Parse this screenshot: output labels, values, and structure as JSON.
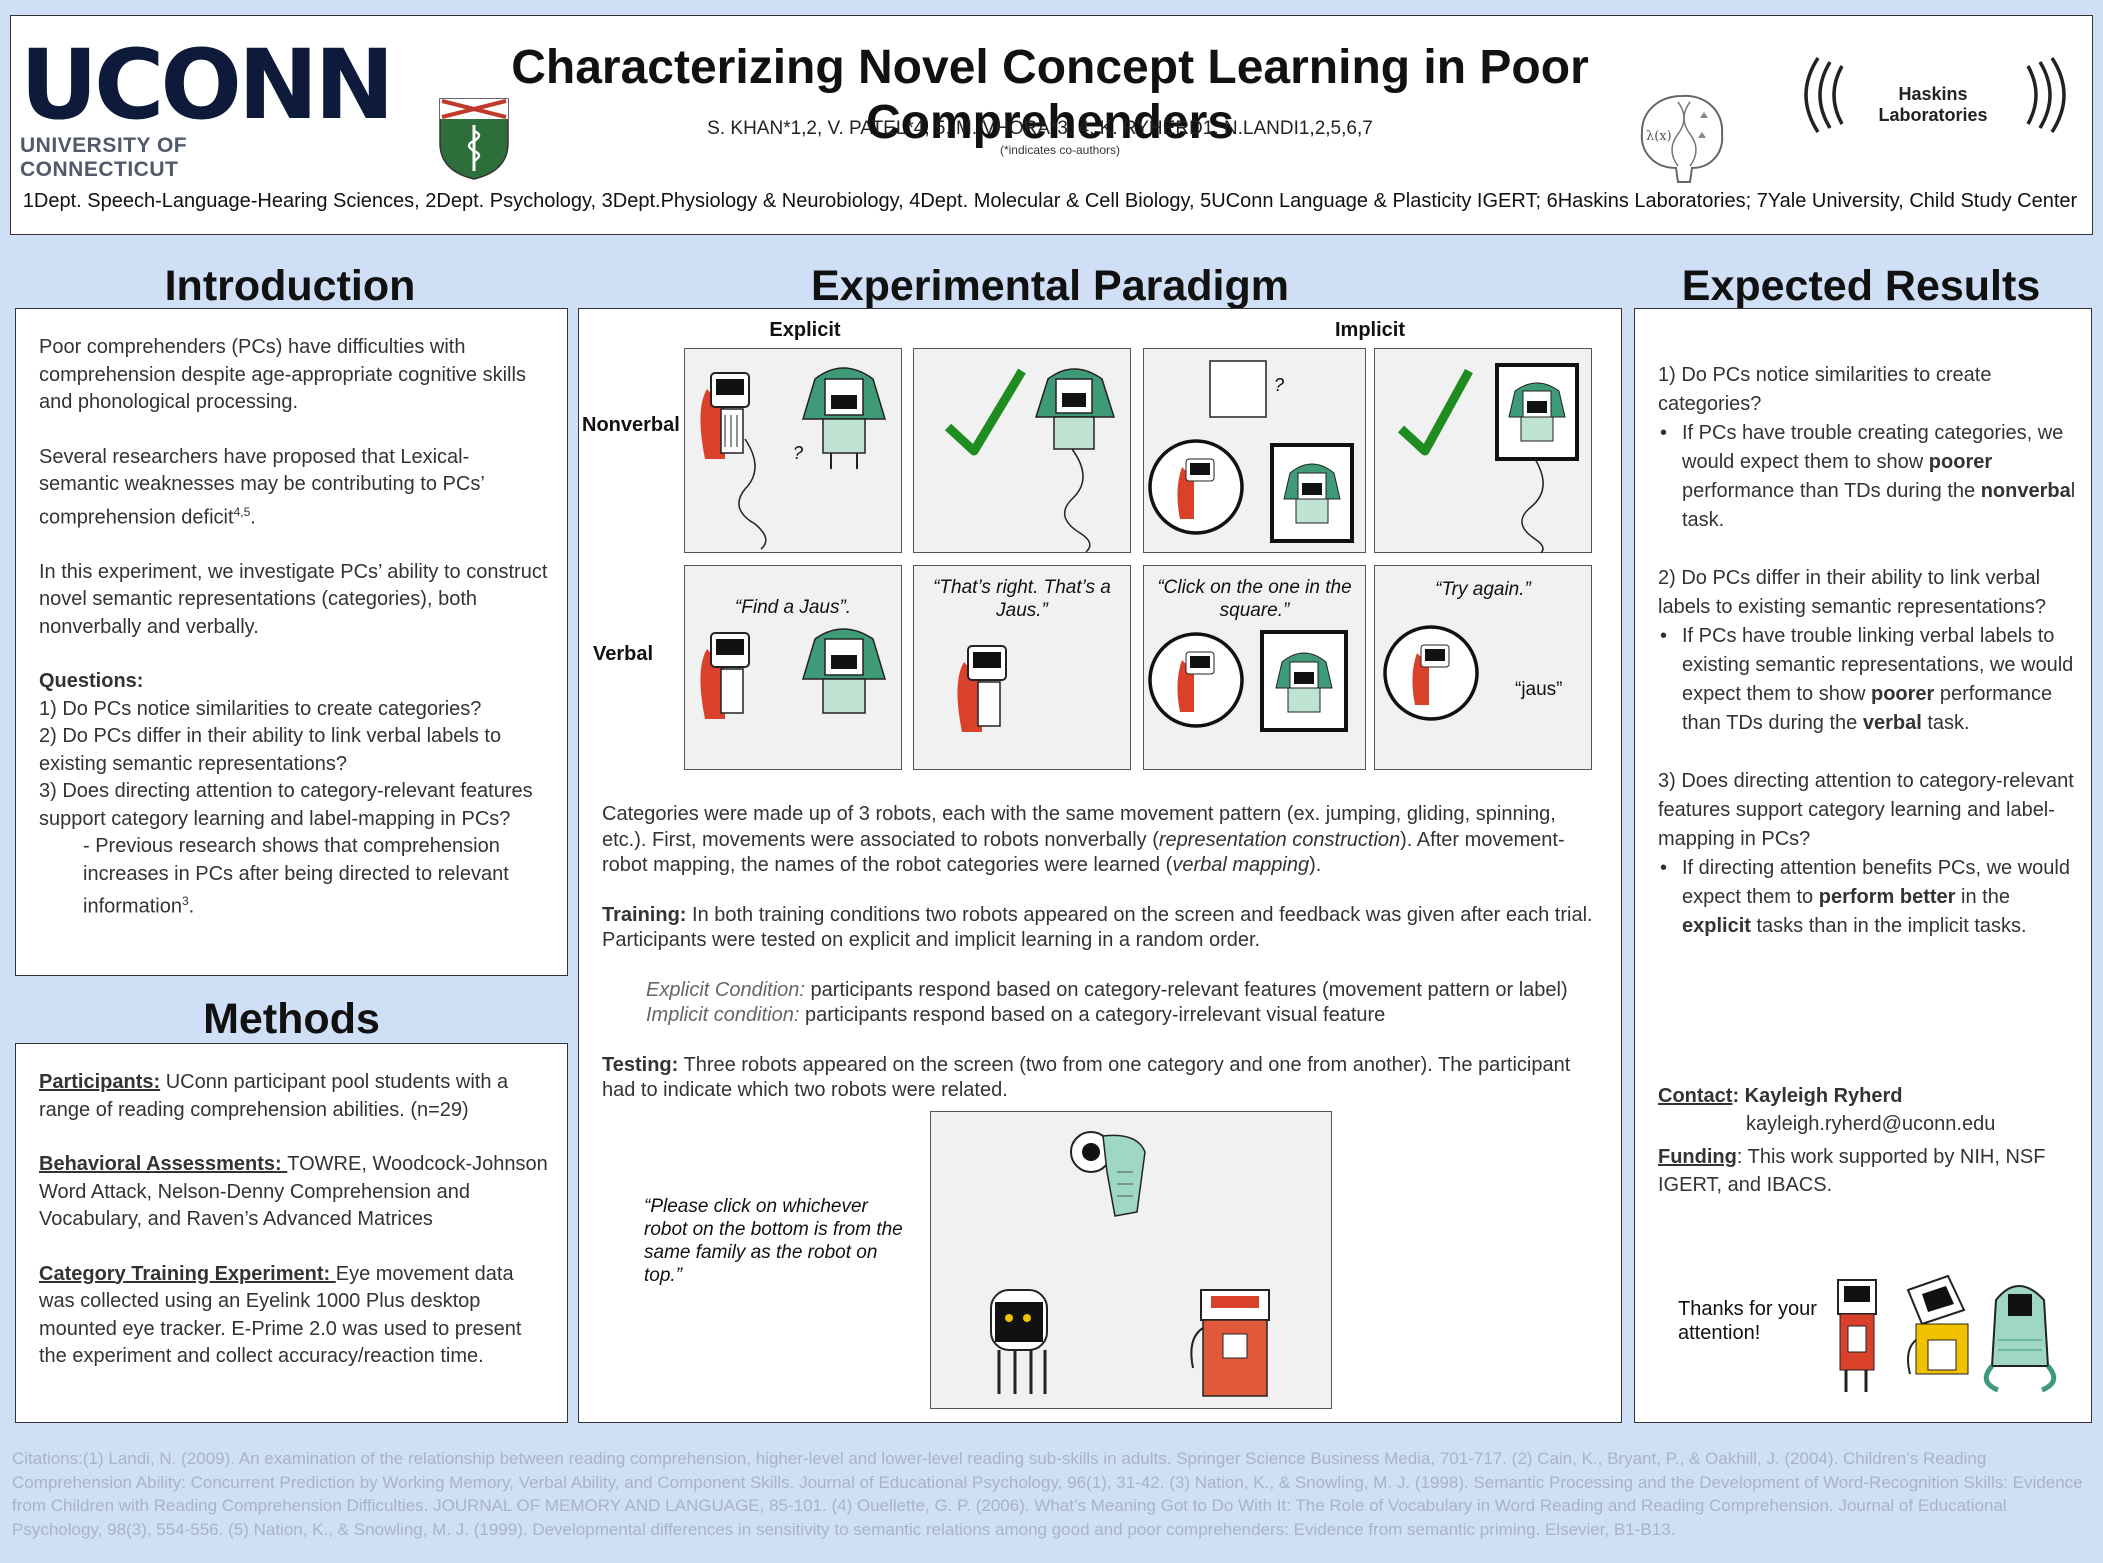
{
  "header": {
    "logo_word": "UCONN",
    "logo_sub": "UNIVERSITY OF CONNECTICUT",
    "title": "Characterizing Novel Concept Learning in Poor Comprehenders",
    "authors": "S. KHAN*1,2, V. PATEL*4, 5, M. VHORA*3, 4,  K. RYHERD1, N.LANDI1,2,5,6,7",
    "coauthor_note": "(*indicates co-authors)",
    "affiliations": "1Dept. Speech-Language-Hearing Sciences, 2Dept. Psychology, 3Dept.Physiology & Neurobiology, 4Dept. Molecular & Cell Biology, 5UConn Language & Plasticity IGERT;  6Haskins Laboratories; 7Yale University, Child Study Center",
    "haskins": "Haskins Laboratories",
    "brain_label": "λ(x)"
  },
  "intro": {
    "heading": "Introduction",
    "p1": "Poor comprehenders (PCs) have difficulties with comprehension despite age-appropriate cognitive skills and phonological processing.",
    "p2": "Several researchers have proposed that Lexical-semantic weaknesses may be contributing to PCs’ comprehension deficit",
    "p2_sup": "4,5",
    "p2_end": ".",
    "p3": "In this experiment, we investigate PCs’ ability to construct novel semantic representations (categories), both nonverbally and verbally.",
    "questions_label": "Questions:",
    "q1": "1) Do PCs notice similarities to create categories?",
    "q2": "2) Do PCs differ in their ability to link verbal labels to existing semantic representations?",
    "q3": "3) Does directing attention to category-relevant features support category learning and label-mapping in PCs?",
    "q3_note": "- Previous research shows that comprehension increases  in PCs after being directed to relevant information",
    "q3_sup": "3",
    "q3_end": "."
  },
  "methods": {
    "heading": "Methods",
    "participants_label": "Participants:",
    "participants": " UConn participant pool students with a range of reading comprehension abilities. (n=29)",
    "behavioral_label": "Behavioral Assessments: ",
    "behavioral": "TOWRE, Woodcock-Johnson Word Attack, Nelson-Denny Comprehension and Vocabulary, and Raven’s Advanced Matrices",
    "category_label": "Category Training Experiment: ",
    "category": "Eye movement data was collected using an Eyelink 1000 Plus desktop mounted eye tracker. E-Prime 2.0 was used to present the experiment and collect accuracy/reaction time."
  },
  "paradigm": {
    "heading": "Experimental Paradigm",
    "col_explicit": "Explicit",
    "col_implicit": "Implicit",
    "row_nonverbal": "Nonverbal",
    "row_verbal": "Verbal",
    "qmark": "?",
    "v1": "“Find a Jaus”.",
    "v2": "“That’s right. That’s a Jaus.”",
    "v3": "“Click on the one in the square.”",
    "v4": "“Try again.”",
    "v4_label": "“jaus”",
    "desc_a": "Categories were made up of 3 robots, each with the same movement pattern (ex. jumping, gliding, spinning, etc.). First, movements were associated to robots nonverbally (",
    "desc_b": "representation construction",
    "desc_c": "). After movement-robot mapping, the names of the robot categories were learned (",
    "desc_d": "verbal mapping",
    "desc_e": ").",
    "training_label": "Training:",
    "training": " In both training conditions two robots appeared on the screen and feedback was given after each trial. Participants were tested on explicit and implicit learning in a random order.",
    "explicit_label": "Explicit Condition:",
    "explicit": " participants respond based on category-relevant features (movement pattern or label)",
    "implicit_label": "Implicit condition:",
    "implicit": " participants respond based on a category-irrelevant visual feature",
    "testing_label": "Testing:",
    "testing": " Three robots appeared on the screen (two from one category and one from another). The participant had to indicate which two robots were related.",
    "testing_quote": "“Please click on whichever robot on the bottom is from the same family as the robot on top.”"
  },
  "results": {
    "heading": "Expected Results",
    "r1": "1) Do PCs notice similarities to create categories?",
    "r1_a": "If PCs have trouble creating categories, we would expect them to show ",
    "r1_b": "poorer",
    "r1_c": " performance than TDs during the ",
    "r1_d": "nonverba",
    "r1_e": "l task.",
    "r2": "2) Do PCs differ in their ability to link verbal labels to existing semantic representations?",
    "r2_a": "If PCs have trouble linking verbal labels to existing semantic representations, we would expect them to show ",
    "r2_b": "poorer",
    "r2_c": " performance than TDs during the ",
    "r2_d": "verbal",
    "r2_e": " task.",
    "r3": "3) Does directing attention to category-relevant features support category learning and label-mapping in PCs?",
    "r3_a": "If directing attention benefits PCs, we would expect them to ",
    "r3_b": "perform better",
    "r3_c": " in the ",
    "r3_d": "explicit",
    "r3_e": " tasks than in the implicit tasks.",
    "contact_label": "Contact",
    "contact_name": ": Kayleigh Ryherd",
    "contact_email": "kayleigh.ryherd@uconn.edu",
    "funding_label": "Funding",
    "funding": ": This work supported by NIH, NSF IGERT, and IBACS.",
    "thanks": "Thanks for your attention!"
  },
  "citations": "Citations:(1)  Landi, N. (2009). An examination of the relationship between reading comprehension, higher-level and lower-level reading sub-skills in adults. Springer Science Business Media, 701-717. (2)  Cain, K., Bryant, P., & Oakhill, J. (2004). Children’s Reading Comprehension Ability: Concurrent Prediction by Working Memory, Verbal Ability, and Component Skills. Journal of Educational Psychology, 96(1), 31-42. (3)  Nation, K., & Snowling, M. J. (1998). Semantic Processing and the Development of Word-Recognition Skills: Evidence from Children with Reading Comprehension Difficulties. JOURNAL OF MEMORY AND LANGUAGE, 85-101. (4)  Ouellette, G. P. (2006). What’s Meaning Got to Do With It: The Role of Vocabulary in Word Reading and Reading Comprehension. Journal of Educational Psychology, 98(3), 554-556. (5)  Nation, K., & Snowling, M. J. (1999). Developmental differences in sensitivity to semantic relations among good and poor comprehenders: Evidence from semantic priming. Elsevier, B1-B13.",
  "colors": {
    "background": "#cfdff5",
    "robot_red": "#d9412b",
    "robot_green": "#3f9a78",
    "check_green": "#1e8c1e",
    "shield_green": "#2e6e3a",
    "shield_red": "#c0392b"
  }
}
